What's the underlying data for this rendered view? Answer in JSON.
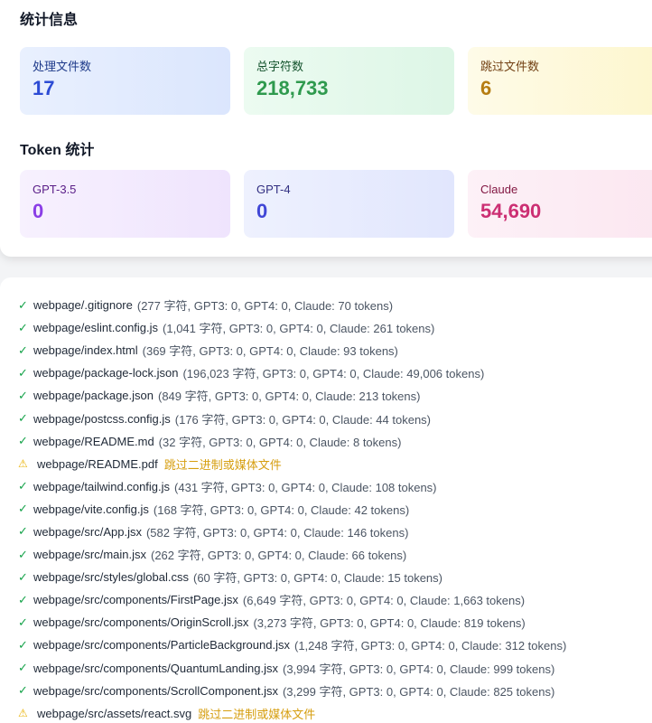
{
  "stats": {
    "title": "统计信息",
    "files_processed": {
      "label": "处理文件数",
      "value": "17"
    },
    "total_chars": {
      "label": "总字符数",
      "value": "218,733"
    },
    "files_skipped": {
      "label": "跳过文件数",
      "value": "6"
    }
  },
  "tokens": {
    "title": "Token 统计",
    "gpt35": {
      "label": "GPT-3.5",
      "value": "0"
    },
    "gpt4": {
      "label": "GPT-4",
      "value": "0"
    },
    "claude": {
      "label": "Claude",
      "value": "54,690"
    }
  },
  "log": [
    {
      "status": "ok",
      "icon": "check-icon",
      "glyph": "✓",
      "path": "webpage/.gitignore",
      "detail": "(277 字符, GPT3: 0, GPT4: 0, Claude: 70 tokens)"
    },
    {
      "status": "ok",
      "icon": "check-icon",
      "glyph": "✓",
      "path": "webpage/eslint.config.js",
      "detail": "(1,041 字符, GPT3: 0, GPT4: 0, Claude: 261 tokens)"
    },
    {
      "status": "ok",
      "icon": "check-icon",
      "glyph": "✓",
      "path": "webpage/index.html",
      "detail": "(369 字符, GPT3: 0, GPT4: 0, Claude: 93 tokens)"
    },
    {
      "status": "ok",
      "icon": "check-icon",
      "glyph": "✓",
      "path": "webpage/package-lock.json",
      "detail": "(196,023 字符, GPT3: 0, GPT4: 0, Claude: 49,006 tokens)"
    },
    {
      "status": "ok",
      "icon": "check-icon",
      "glyph": "✓",
      "path": "webpage/package.json",
      "detail": "(849 字符, GPT3: 0, GPT4: 0, Claude: 213 tokens)"
    },
    {
      "status": "ok",
      "icon": "check-icon",
      "glyph": "✓",
      "path": "webpage/postcss.config.js",
      "detail": "(176 字符, GPT3: 0, GPT4: 0, Claude: 44 tokens)"
    },
    {
      "status": "ok",
      "icon": "check-icon",
      "glyph": "✓",
      "path": "webpage/README.md",
      "detail": "(32 字符, GPT3: 0, GPT4: 0, Claude: 8 tokens)"
    },
    {
      "status": "warn",
      "icon": "warning-icon",
      "glyph": "⚠",
      "path": "webpage/README.pdf",
      "detail": "跳过二进制或媒体文件"
    },
    {
      "status": "ok",
      "icon": "check-icon",
      "glyph": "✓",
      "path": "webpage/tailwind.config.js",
      "detail": "(431 字符, GPT3: 0, GPT4: 0, Claude: 108 tokens)"
    },
    {
      "status": "ok",
      "icon": "check-icon",
      "glyph": "✓",
      "path": "webpage/vite.config.js",
      "detail": "(168 字符, GPT3: 0, GPT4: 0, Claude: 42 tokens)"
    },
    {
      "status": "ok",
      "icon": "check-icon",
      "glyph": "✓",
      "path": "webpage/src/App.jsx",
      "detail": "(582 字符, GPT3: 0, GPT4: 0, Claude: 146 tokens)"
    },
    {
      "status": "ok",
      "icon": "check-icon",
      "glyph": "✓",
      "path": "webpage/src/main.jsx",
      "detail": "(262 字符, GPT3: 0, GPT4: 0, Claude: 66 tokens)"
    },
    {
      "status": "ok",
      "icon": "check-icon",
      "glyph": "✓",
      "path": "webpage/src/styles/global.css",
      "detail": "(60 字符, GPT3: 0, GPT4: 0, Claude: 15 tokens)"
    },
    {
      "status": "ok",
      "icon": "check-icon",
      "glyph": "✓",
      "path": "webpage/src/components/FirstPage.jsx",
      "detail": "(6,649 字符, GPT3: 0, GPT4: 0, Claude: 1,663 tokens)"
    },
    {
      "status": "ok",
      "icon": "check-icon",
      "glyph": "✓",
      "path": "webpage/src/components/OriginScroll.jsx",
      "detail": "(3,273 字符, GPT3: 0, GPT4: 0, Claude: 819 tokens)"
    },
    {
      "status": "ok",
      "icon": "check-icon",
      "glyph": "✓",
      "path": "webpage/src/components/ParticleBackground.jsx",
      "detail": "(1,248 字符, GPT3: 0, GPT4: 0, Claude: 312 tokens)"
    },
    {
      "status": "ok",
      "icon": "check-icon",
      "glyph": "✓",
      "path": "webpage/src/components/QuantumLanding.jsx",
      "detail": "(3,994 字符, GPT3: 0, GPT4: 0, Claude: 999 tokens)"
    },
    {
      "status": "ok",
      "icon": "check-icon",
      "glyph": "✓",
      "path": "webpage/src/components/ScrollComponent.jsx",
      "detail": "(3,299 字符, GPT3: 0, GPT4: 0, Claude: 825 tokens)"
    },
    {
      "status": "warn",
      "icon": "warning-icon",
      "glyph": "⚠",
      "path": "webpage/src/assets/react.svg",
      "detail": "跳过二进制或媒体文件"
    }
  ],
  "colors": {
    "ok": "#16a34a",
    "warn": "#eab308"
  }
}
